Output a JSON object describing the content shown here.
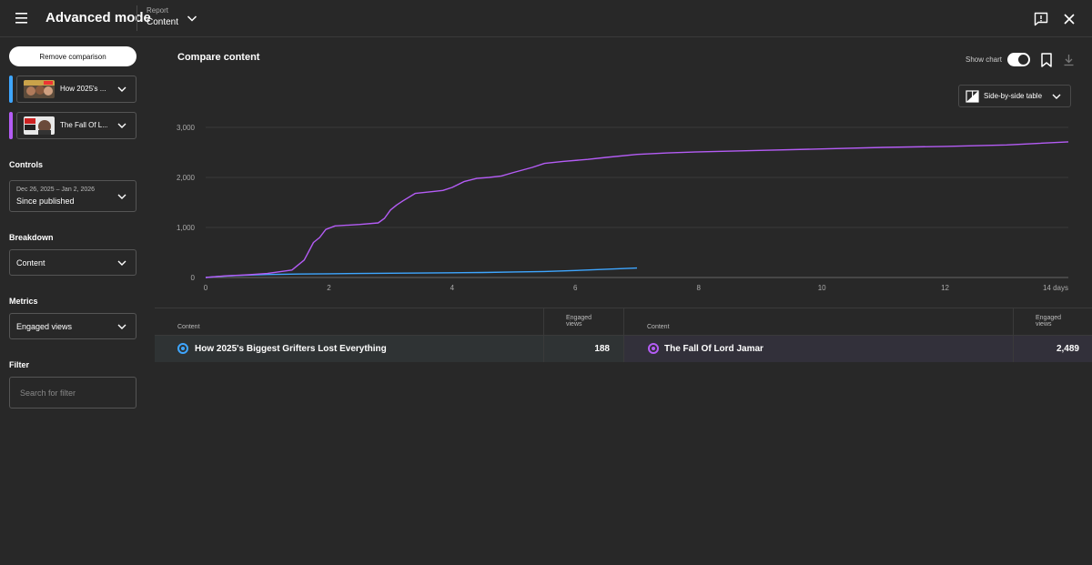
{
  "header": {
    "title": "Advanced mode",
    "report_label": "Report",
    "report_value": "Content"
  },
  "sidebar": {
    "remove_comparison": "Remove comparison",
    "items": [
      {
        "label": "How 2025's ...",
        "color": "#3ea6ff"
      },
      {
        "label": "The Fall Of L...",
        "color": "#b45cf5"
      }
    ],
    "controls_label": "Controls",
    "date_range": "Dec 26, 2025 – Jan 2, 2026",
    "date_preset": "Since published",
    "breakdown_label": "Breakdown",
    "breakdown_value": "Content",
    "metrics_label": "Metrics",
    "metrics_value": "Engaged views",
    "filter_label": "Filter",
    "filter_placeholder": "Search for filter"
  },
  "main": {
    "title": "Compare content",
    "show_chart_label": "Show chart",
    "show_chart_on": true,
    "table_type": "Side-by-side table"
  },
  "chart_data": {
    "type": "line",
    "xlabel": "",
    "ylabel": "",
    "xlim": [
      0,
      14
    ],
    "ylim": [
      0,
      3000
    ],
    "x_ticks": [
      "0",
      "2",
      "4",
      "6",
      "8",
      "10",
      "12",
      "14 days"
    ],
    "y_ticks": [
      "0",
      "1,000",
      "2,000",
      "3,000"
    ],
    "grid": true,
    "series": [
      {
        "name": "How 2025's Biggest Grifters Lost Everything",
        "color": "#3ea6ff",
        "x": [
          0,
          0.2,
          0.5,
          1,
          1.5,
          2,
          2.5,
          3,
          3.5,
          4,
          4.5,
          5,
          5.5,
          6,
          6.5,
          7
        ],
        "y": [
          0,
          20,
          40,
          60,
          70,
          75,
          80,
          85,
          90,
          95,
          100,
          110,
          120,
          140,
          165,
          190
        ]
      },
      {
        "name": "The Fall Of Lord Jamar",
        "color": "#b45cf5",
        "x": [
          0,
          0.3,
          0.7,
          1.0,
          1.4,
          1.6,
          1.75,
          1.85,
          1.95,
          2.1,
          2.5,
          2.8,
          2.9,
          3.0,
          3.1,
          3.2,
          3.4,
          3.7,
          3.85,
          4.0,
          4.2,
          4.4,
          4.6,
          4.8,
          5.0,
          5.3,
          5.5,
          5.8,
          6.2,
          6.5,
          7.0,
          7.5,
          8.0,
          9.0,
          10.0,
          11.0,
          12.0,
          13.0,
          14.0
        ],
        "y": [
          0,
          30,
          55,
          80,
          150,
          350,
          700,
          800,
          960,
          1030,
          1060,
          1090,
          1180,
          1350,
          1450,
          1530,
          1680,
          1720,
          1740,
          1800,
          1920,
          1980,
          2000,
          2030,
          2100,
          2200,
          2280,
          2320,
          2360,
          2400,
          2460,
          2490,
          2510,
          2540,
          2570,
          2600,
          2620,
          2650,
          2710
        ]
      }
    ]
  },
  "table": {
    "left": {
      "header_content": "Content",
      "header_metric": "Engaged views",
      "title": "How 2025's Biggest Grifters Lost Everything",
      "value": "188"
    },
    "right": {
      "header_content": "Content",
      "header_metric": "Engaged views",
      "title": "The Fall Of Lord Jamar",
      "value": "2,489"
    }
  }
}
